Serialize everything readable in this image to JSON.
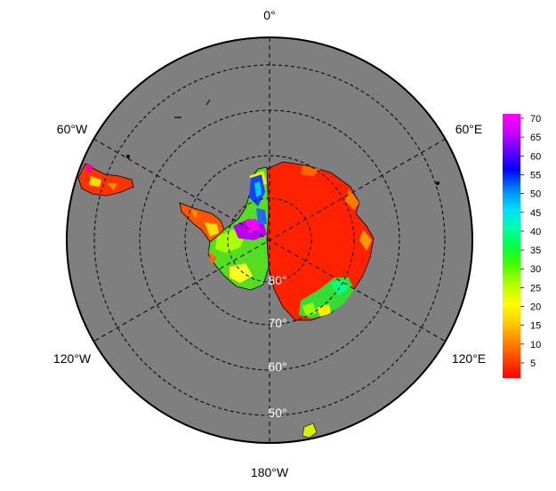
{
  "map": {
    "projection": "south polar stereographic",
    "ocean_color": "#7f7f7f",
    "longitude_labels": [
      {
        "key": "0",
        "text": "0°"
      },
      {
        "key": "60e",
        "text": "60°E"
      },
      {
        "key": "120e",
        "text": "120°E"
      },
      {
        "key": "180",
        "text": "180°W"
      },
      {
        "key": "120w",
        "text": "120°W"
      },
      {
        "key": "60w",
        "text": "60°W"
      }
    ],
    "latitude_labels": [
      {
        "key": "80",
        "text": "80°"
      },
      {
        "key": "70",
        "text": "70°"
      },
      {
        "key": "60",
        "text": "60°"
      },
      {
        "key": "50",
        "text": "50°"
      }
    ]
  },
  "colorbar": {
    "ticks": [
      "70",
      "65",
      "60",
      "55",
      "50",
      "45",
      "40",
      "35",
      "30",
      "25",
      "20",
      "15",
      "10",
      "5"
    ],
    "colors": [
      "#ff0000",
      "#ff4400",
      "#ff8800",
      "#ffcc00",
      "#ffff00",
      "#aaff00",
      "#44ff00",
      "#00ff44",
      "#00ffaa",
      "#00ddff",
      "#0088ff",
      "#0000ff",
      "#6600ff",
      "#cc00ff",
      "#ff00ff"
    ]
  }
}
